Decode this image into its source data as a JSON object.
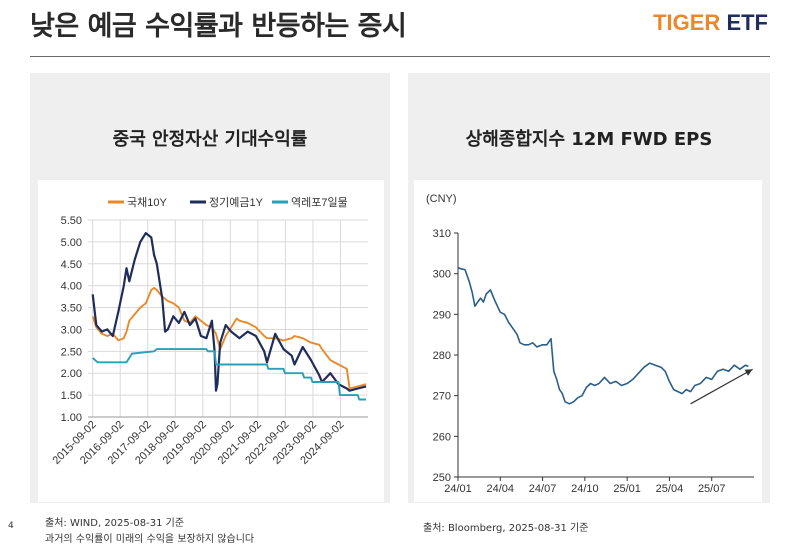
{
  "header": {
    "title": "낮은 예금 수익률과 반등하는 증시",
    "brand_part1": "TIGER",
    "brand_part2": " ETF",
    "brand_color1": "#e8892b",
    "brand_color2": "#1f2d5a"
  },
  "chart_data": [
    {
      "type": "line",
      "title": "중국 안정자산 기대수익률",
      "xlabel": "",
      "ylabel": "",
      "ylim": [
        1.0,
        5.5
      ],
      "yticks": [
        "1.00",
        "1.50",
        "2.00",
        "2.50",
        "3.00",
        "3.50",
        "4.00",
        "4.50",
        "5.00",
        "5.50"
      ],
      "xticks": [
        "2015-09-02",
        "2016-09-02",
        "2017-09-02",
        "2018-09-02",
        "2019-09-02",
        "2020-09-02",
        "2021-09-02",
        "2022-09-02",
        "2023-09-02",
        "2024-09-02"
      ],
      "grid": true,
      "legend_position": "top",
      "x_domain": [
        2015.5,
        2025.67
      ],
      "series": [
        {
          "name": "국채10Y",
          "color": "#e8892b",
          "x": [
            2015.67,
            2015.8,
            2016.0,
            2016.2,
            2016.4,
            2016.6,
            2016.8,
            2016.9,
            2017.0,
            2017.2,
            2017.4,
            2017.6,
            2017.8,
            2017.9,
            2018.0,
            2018.2,
            2018.4,
            2018.6,
            2018.8,
            2019.0,
            2019.2,
            2019.4,
            2019.6,
            2019.8,
            2020.0,
            2020.15,
            2020.3,
            2020.5,
            2020.7,
            2020.9,
            2021.0,
            2021.3,
            2021.6,
            2021.9,
            2022.0,
            2022.3,
            2022.6,
            2022.9,
            2023.0,
            2023.3,
            2023.6,
            2023.9,
            2024.0,
            2024.3,
            2024.6,
            2024.9,
            2025.0,
            2025.3,
            2025.6
          ],
          "y": [
            3.3,
            3.05,
            2.9,
            2.85,
            2.9,
            2.75,
            2.8,
            2.95,
            3.2,
            3.35,
            3.5,
            3.6,
            3.9,
            3.95,
            3.9,
            3.75,
            3.65,
            3.6,
            3.5,
            3.2,
            3.15,
            3.3,
            3.2,
            3.1,
            3.05,
            2.9,
            2.55,
            2.85,
            3.05,
            3.25,
            3.2,
            3.15,
            3.05,
            2.85,
            2.8,
            2.8,
            2.75,
            2.8,
            2.85,
            2.8,
            2.7,
            2.65,
            2.55,
            2.3,
            2.2,
            2.1,
            1.65,
            1.7,
            1.75
          ]
        },
        {
          "name": "정기예금1Y",
          "color": "#1f2d5a",
          "x": [
            2015.67,
            2015.8,
            2016.0,
            2016.2,
            2016.4,
            2016.6,
            2016.8,
            2016.9,
            2017.0,
            2017.2,
            2017.4,
            2017.6,
            2017.8,
            2017.9,
            2018.0,
            2018.2,
            2018.3,
            2018.4,
            2018.6,
            2018.8,
            2019.0,
            2019.2,
            2019.4,
            2019.6,
            2019.8,
            2020.0,
            2020.1,
            2020.15,
            2020.2,
            2020.3,
            2020.5,
            2020.7,
            2020.9,
            2021.0,
            2021.3,
            2021.6,
            2021.9,
            2022.0,
            2022.3,
            2022.6,
            2022.9,
            2023.0,
            2023.3,
            2023.6,
            2023.9,
            2024.0,
            2024.3,
            2024.6,
            2024.9,
            2025.0,
            2025.3,
            2025.6
          ],
          "y": [
            3.8,
            3.1,
            2.95,
            3.0,
            2.85,
            3.4,
            4.0,
            4.4,
            4.1,
            4.6,
            5.0,
            5.2,
            5.1,
            4.7,
            4.5,
            3.7,
            2.95,
            3.0,
            3.3,
            3.15,
            3.4,
            3.1,
            3.25,
            2.85,
            2.8,
            3.2,
            2.5,
            1.6,
            1.75,
            2.7,
            3.1,
            2.95,
            2.85,
            2.8,
            2.95,
            2.85,
            2.5,
            2.25,
            2.9,
            2.55,
            2.4,
            2.2,
            2.6,
            2.3,
            1.95,
            1.8,
            2.0,
            1.75,
            1.65,
            1.6,
            1.65,
            1.7
          ]
        },
        {
          "name": "역레포7일물",
          "color": "#2aa0b8",
          "x": [
            2015.67,
            2015.85,
            2016.0,
            2016.5,
            2016.9,
            2017.0,
            2017.1,
            2017.15,
            2017.9,
            2018.0,
            2019.8,
            2019.85,
            2020.1,
            2020.15,
            2022.0,
            2022.05,
            2022.6,
            2022.65,
            2023.3,
            2023.35,
            2023.6,
            2023.65,
            2024.6,
            2024.65,
            2025.3,
            2025.35,
            2025.6
          ],
          "y": [
            2.35,
            2.25,
            2.25,
            2.25,
            2.25,
            2.35,
            2.45,
            2.45,
            2.5,
            2.55,
            2.55,
            2.5,
            2.5,
            2.2,
            2.2,
            2.1,
            2.1,
            2.0,
            2.0,
            1.9,
            1.9,
            1.8,
            1.8,
            1.5,
            1.5,
            1.4,
            1.4
          ]
        }
      ]
    },
    {
      "type": "line",
      "title": "상해종합지수 12M FWD EPS",
      "unit_label": "(CNY)",
      "ylim": [
        250,
        310
      ],
      "yticks": [
        "250",
        "260",
        "270",
        "280",
        "290",
        "300",
        "310"
      ],
      "xticks": [
        "24/01",
        "24/04",
        "24/07",
        "24/10",
        "25/01",
        "25/04",
        "25/07"
      ],
      "x_domain": [
        0,
        21
      ],
      "grid": false,
      "trend_arrow": true,
      "series": [
        {
          "color": "#2b5f8a",
          "x": [
            0,
            0.2,
            0.5,
            0.8,
            1.0,
            1.2,
            1.4,
            1.6,
            1.8,
            2.0,
            2.3,
            2.6,
            3.0,
            3.3,
            3.6,
            3.9,
            4.2,
            4.4,
            4.7,
            5.0,
            5.3,
            5.6,
            6.0,
            6.3,
            6.6,
            6.8,
            7.0,
            7.2,
            7.4,
            7.6,
            7.9,
            8.2,
            8.5,
            8.8,
            9.1,
            9.4,
            9.7,
            10.0,
            10.4,
            10.8,
            11.2,
            11.6,
            12.0,
            12.4,
            12.8,
            13.2,
            13.6,
            14.0,
            14.4,
            14.7,
            15.0,
            15.3,
            15.6,
            15.9,
            16.2,
            16.5,
            16.8,
            17.2,
            17.6,
            18.0,
            18.4,
            18.8,
            19.2,
            19.6,
            20.0,
            20.4,
            20.6
          ],
          "y": [
            301.5,
            301.2,
            301.0,
            298.0,
            295.5,
            292.0,
            293.0,
            294.0,
            293.0,
            295.0,
            296.0,
            293.5,
            290.5,
            290.0,
            288.0,
            286.5,
            285.0,
            283.0,
            282.5,
            282.5,
            283.0,
            282.0,
            282.5,
            282.5,
            284.0,
            276.0,
            274.0,
            271.5,
            270.5,
            268.5,
            268.0,
            268.5,
            269.5,
            270.0,
            272.0,
            273.0,
            272.5,
            273.0,
            274.5,
            273.0,
            273.5,
            272.5,
            273.0,
            274.0,
            275.5,
            277.0,
            278.0,
            277.5,
            277.0,
            276.0,
            273.5,
            271.5,
            271.0,
            270.5,
            271.5,
            271.0,
            272.5,
            273.0,
            274.5,
            274.0,
            276.0,
            276.5,
            276.0,
            277.5,
            276.5,
            277.5,
            277.2
          ]
        }
      ]
    }
  ],
  "footer": {
    "page_number": "4",
    "source_left": "출처: WIND, 2025-08-31 기준",
    "disclaimer": "과거의 수익률이 미래의 수익을 보장하지 않습니다",
    "source_right": "출처: Bloomberg, 2025-08-31 기준"
  }
}
